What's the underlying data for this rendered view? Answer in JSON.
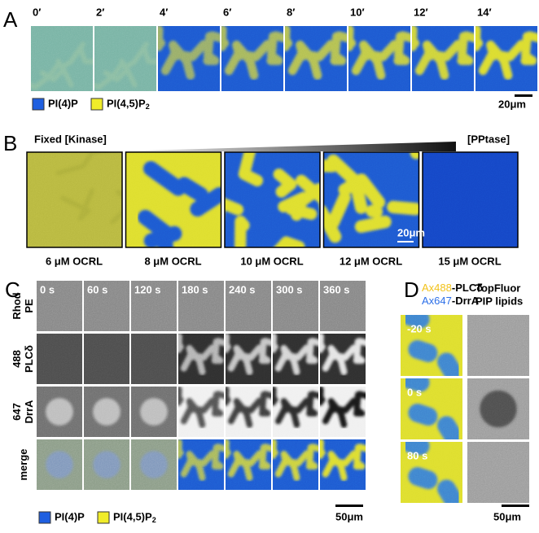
{
  "panel_a": {
    "letter": "A",
    "times": [
      "0′",
      "2′",
      "4′",
      "6′",
      "8′",
      "10′",
      "12′",
      "14′"
    ],
    "legend": [
      {
        "label": "PI(4)P"
      },
      {
        "label": "PI(4,5)P",
        "subscript": "2"
      }
    ],
    "scale": "20μm"
  },
  "panel_b": {
    "letter": "B",
    "left_label": "Fixed [Kinase]",
    "right_label": "[PPtase]",
    "conditions": [
      "6 μM OCRL",
      "8 μM OCRL",
      "10 μM OCRL",
      "12 μM OCRL",
      "15 μM OCRL"
    ],
    "scale": "20μm"
  },
  "panel_c": {
    "letter": "C",
    "times": [
      "0 s",
      "60 s",
      "120 s",
      "180 s",
      "240 s",
      "300 s",
      "360 s"
    ],
    "rows": [
      [
        "Rhod",
        "PE"
      ],
      [
        "488",
        "PLCδ"
      ],
      [
        "647",
        "DrrA"
      ],
      [
        "merge"
      ]
    ],
    "legend": [
      {
        "label": "PI(4)P"
      },
      {
        "label": "PI(4,5)P",
        "subscript": "2"
      }
    ],
    "scale": "50μm"
  },
  "panel_d": {
    "letter": "D",
    "probes": [
      {
        "prefix": "Ax488",
        "suffix": "-PLCδ"
      },
      {
        "prefix": "Ax647",
        "suffix": "-DrrA"
      }
    ],
    "lipids": [
      "TopFluor",
      "PIP lipids"
    ],
    "times": [
      "-20 s",
      "0 s",
      "80 s"
    ],
    "scale": "50μm"
  }
}
